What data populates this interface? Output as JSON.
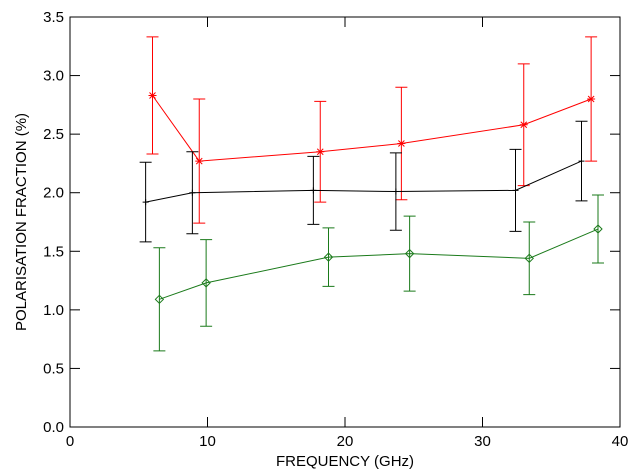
{
  "chart_data": {
    "type": "line",
    "xlabel": "FREQUENCY (GHz)",
    "ylabel": "POLARISATION FRACTION (%)",
    "xlim": [
      0,
      40
    ],
    "xticks": [
      0,
      10,
      20,
      30,
      40
    ],
    "ylim": [
      0,
      3.5
    ],
    "yticks": [
      {
        "value": 0,
        "label": "0.0"
      },
      0.5,
      {
        "value": 1,
        "label": "1.0"
      },
      1.5,
      {
        "value": 2,
        "label": "2.0"
      },
      2.5,
      {
        "value": 3,
        "label": "3.0"
      },
      3.5
    ],
    "grid": false,
    "series": [
      {
        "color": "#ff0000",
        "marker": "asterisk",
        "x": [
          6.0,
          9.4,
          18.2,
          24.1,
          33.0,
          37.9
        ],
        "values": [
          2.83,
          2.27,
          2.35,
          2.42,
          2.58,
          2.8
        ],
        "errors": [
          0.5,
          0.53,
          0.43,
          0.48,
          0.52,
          0.53
        ]
      },
      {
        "color": "#000000",
        "marker": "plus",
        "x": [
          5.5,
          8.9,
          17.7,
          23.7,
          32.4,
          37.2
        ],
        "values": [
          1.92,
          2.0,
          2.02,
          2.01,
          2.02,
          2.27
        ],
        "errors": [
          0.34,
          0.35,
          0.29,
          0.33,
          0.35,
          0.34
        ]
      },
      {
        "color": "#1a7a1a",
        "marker": "diamond",
        "x": [
          6.5,
          9.9,
          18.8,
          24.7,
          33.4,
          38.4
        ],
        "values": [
          1.09,
          1.23,
          1.45,
          1.48,
          1.44,
          1.69
        ],
        "errors": [
          0.44,
          0.37,
          0.25,
          0.32,
          0.31,
          0.29
        ]
      }
    ]
  }
}
